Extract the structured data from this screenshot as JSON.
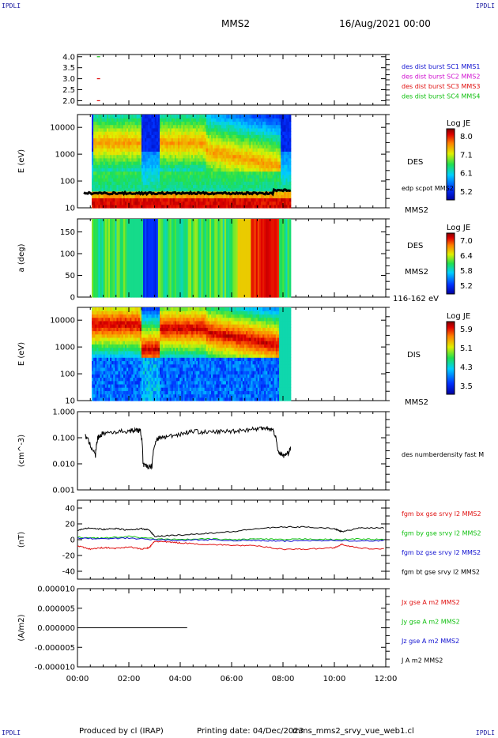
{
  "header": {
    "corner_tl": "IPDLI",
    "corner_tr": "IPDLI",
    "corner_bl": "IPDLI",
    "corner_br": "IPDLI",
    "spacecraft": "MMS2",
    "date": "16/Aug/2021 00:00"
  },
  "footer": {
    "producer": "Produced by cl (IRAP)",
    "printing": "Printing date: 04/Dec/2023",
    "script": "mms_mms2_srvy_vue_web1.cl"
  },
  "colors": {
    "blue": "#1010d0",
    "magenta": "#d010d0",
    "red": "#e01010",
    "green": "#10c010",
    "black": "#000000"
  },
  "chart_data": [
    {
      "id": "burst",
      "type": "scatter",
      "xlabel": "",
      "ylabel": "",
      "ylim": [
        1.8,
        4.1
      ],
      "yticks": [
        "4.0",
        "3.5",
        "3.0",
        "2.5",
        "2.0"
      ],
      "series": [
        {
          "name": "des dist burst SC1 MMS1",
          "color": "#1010d0",
          "points": []
        },
        {
          "name": "des dist burst SC2 MMS2",
          "color": "#d010d0",
          "points": []
        },
        {
          "name": "des dist burst SC3 MMS3",
          "color": "#e01010",
          "points": [
            [
              0.82,
              3.0
            ],
            [
              0.82,
              2.0
            ]
          ]
        },
        {
          "name": "des dist burst SC4 MMS4",
          "color": "#10c010",
          "points": [
            [
              0.82,
              4.0
            ]
          ]
        }
      ]
    },
    {
      "id": "des_energy",
      "type": "heatmap",
      "ylabel": "E (eV)",
      "yscale": "log",
      "ylim": [
        10,
        30000
      ],
      "yticks": [
        "10000",
        "1000",
        "100",
        "10"
      ],
      "label_right": "DES",
      "label_right2": "edp scpot MMS2",
      "label_bottom": "MMS2",
      "colorbar": {
        "title": "Log JE",
        "ticks": [
          "8.0",
          "7.1",
          "6.1",
          "5.2"
        ]
      },
      "data_end_hour": 8.3
    },
    {
      "id": "des_pitch",
      "type": "heatmap",
      "ylabel": "a (deg)",
      "ylim": [
        0,
        180
      ],
      "yticks": [
        "150",
        "100",
        "50",
        "0"
      ],
      "label_right": "DES",
      "label_right2": "MMS2",
      "label_bottom": "116-162 eV",
      "colorbar": {
        "title": "Log JE",
        "ticks": [
          "7.0",
          "6.4",
          "5.8",
          "5.2"
        ]
      },
      "data_end_hour": 8.3
    },
    {
      "id": "dis_energy",
      "type": "heatmap",
      "ylabel": "E (eV)",
      "yscale": "log",
      "ylim": [
        10,
        30000
      ],
      "yticks": [
        "10000",
        "1000",
        "100",
        "10"
      ],
      "label_right": "DIS",
      "label_bottom": "MMS2",
      "colorbar": {
        "title": "Log JE",
        "ticks": [
          "5.9",
          "5.1",
          "4.3",
          "3.5"
        ]
      },
      "data_end_hour": 8.3
    },
    {
      "id": "density",
      "type": "line",
      "ylabel": "(cm^-3)",
      "yscale": "log",
      "ylim": [
        0.001,
        1.0
      ],
      "yticks": [
        "1.000",
        "0.100",
        "0.010",
        "0.001"
      ],
      "series": [
        {
          "name": "des numberdensity fast M",
          "color": "#000000",
          "x": [
            0.3,
            0.5,
            0.7,
            0.8,
            1.0,
            1.5,
            2.0,
            2.3,
            2.45,
            2.55,
            2.7,
            2.9,
            3.1,
            3.2,
            3.5,
            4.0,
            4.5,
            5.0,
            5.5,
            6.0,
            6.5,
            7.0,
            7.3,
            7.6,
            7.8,
            8.0,
            8.2,
            8.3
          ],
          "y": [
            0.12,
            0.05,
            0.02,
            0.1,
            0.15,
            0.17,
            0.18,
            0.2,
            0.18,
            0.009,
            0.008,
            0.008,
            0.09,
            0.1,
            0.11,
            0.14,
            0.18,
            0.16,
            0.17,
            0.18,
            0.2,
            0.22,
            0.25,
            0.2,
            0.03,
            0.02,
            0.025,
            0.04
          ]
        }
      ]
    },
    {
      "id": "fgm",
      "type": "line",
      "ylabel": "(nT)",
      "ylim": [
        -50,
        50
      ],
      "yticks": [
        "40",
        "20",
        "0",
        "-20",
        "-40"
      ],
      "series": [
        {
          "name": "fgm bx gse srvy l2 MMS2",
          "color": "#e01010",
          "x": [
            0,
            0.5,
            1.0,
            1.5,
            2.0,
            2.5,
            2.8,
            3.0,
            3.5,
            4.0,
            5.0,
            6.0,
            7.0,
            8.0,
            9.0,
            10.0,
            10.3,
            11.0,
            12.0
          ],
          "y": [
            -8,
            -12,
            -10,
            -11,
            -9,
            -12,
            -10,
            -2,
            -3,
            -4,
            -6,
            -7,
            -8,
            -12,
            -12,
            -10,
            -6,
            -11,
            -12
          ]
        },
        {
          "name": "fgm by gse srvy l2 MMS2",
          "color": "#10c010",
          "x": [
            0,
            1,
            2,
            3,
            4,
            5,
            6,
            7,
            8,
            9,
            10,
            11,
            12
          ],
          "y": [
            3,
            2,
            4,
            1,
            0,
            1,
            0,
            1,
            0,
            1,
            0,
            1,
            0
          ]
        },
        {
          "name": "fgm bz gse srvy l2 MMS2",
          "color": "#1010d0",
          "x": [
            0,
            1,
            2,
            3,
            4,
            5,
            6,
            7,
            8,
            9,
            10,
            11,
            12
          ],
          "y": [
            2,
            1,
            2,
            0,
            -1,
            0,
            -1,
            -1,
            -2,
            -1,
            -1,
            -2,
            -1
          ]
        },
        {
          "name": "fgm bt gse srvy l2 MMS2",
          "color": "#000000",
          "x": [
            0,
            0.5,
            1.0,
            1.5,
            2.0,
            2.5,
            2.8,
            3.0,
            3.5,
            4.0,
            5.0,
            6.0,
            7.0,
            8.0,
            9.0,
            10.0,
            10.3,
            11.0,
            12.0
          ],
          "y": [
            12,
            15,
            13,
            14,
            12,
            14,
            12,
            4,
            5,
            6,
            8,
            10,
            14,
            16,
            16,
            14,
            10,
            15,
            15
          ]
        }
      ]
    },
    {
      "id": "current",
      "type": "line",
      "ylabel": "(A/m2)",
      "ylim": [
        -0.0001,
        0.0001
      ],
      "yticks": [
        "0.000010",
        "0.000005",
        "0.000000",
        "-0.000005",
        "-0.000010"
      ],
      "series": [
        {
          "name": "Jx gse A m2 MMS2",
          "color": "#e01010",
          "x": [],
          "y": []
        },
        {
          "name": "Jy gse A m2 MMS2",
          "color": "#10c010",
          "x": [],
          "y": []
        },
        {
          "name": "Jz gse A m2 MMS2",
          "color": "#1010d0",
          "x": [],
          "y": []
        },
        {
          "name": "J A m2 MMS2",
          "color": "#000000",
          "x": [
            0,
            4.6
          ],
          "y": [
            0,
            0
          ]
        }
      ]
    }
  ],
  "time_axis": {
    "xlim": [
      0,
      12
    ],
    "ticks": [
      "00:00",
      "02:00",
      "04:00",
      "06:00",
      "08:00",
      "10:00",
      "12:00"
    ]
  }
}
